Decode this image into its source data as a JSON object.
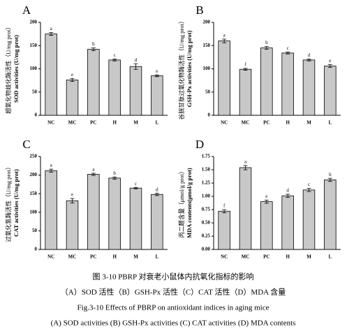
{
  "chart_data": [
    {
      "type": "bar",
      "title": "A",
      "y_label": [
        "超氧化物歧化酶活性（U/mg prot）",
        "SOD activities (U/mg prot)"
      ],
      "categories": [
        "NC",
        "MC",
        "PC",
        "H",
        "M",
        "L"
      ],
      "values": [
        175,
        76,
        142,
        119,
        105,
        85
      ],
      "errors": [
        3,
        3,
        3,
        2,
        6,
        2
      ],
      "letters": [
        "a",
        "e",
        "b",
        "c",
        "d",
        "e"
      ],
      "color": "#c8c8c8",
      "ylim": [
        0,
        200
      ],
      "yticks": [
        0,
        50,
        100,
        150,
        200
      ]
    },
    {
      "type": "bar",
      "title": "B",
      "y_label": [
        "谷胱甘肽过氧化物酶活性（U/mg prot）",
        "GSH-Px activities (U/mg prot)"
      ],
      "categories": [
        "NC",
        "MC",
        "PC",
        "H",
        "M",
        "L"
      ],
      "values": [
        160,
        99,
        145,
        134,
        119,
        106
      ],
      "errors": [
        4,
        2,
        3,
        2,
        2,
        3
      ],
      "letters": [
        "a",
        "f",
        "b",
        "c",
        "d",
        "e"
      ],
      "color": "#c8c8c8",
      "ylim": [
        0,
        200
      ],
      "yticks": [
        0,
        50,
        100,
        150,
        200
      ]
    },
    {
      "type": "bar",
      "title": "C",
      "y_label": [
        "过氧化氢酶活性（U/mg prot）",
        "CAT activities (U/mg prot)"
      ],
      "categories": [
        "NC",
        "MC",
        "PC",
        "H",
        "M",
        "L"
      ],
      "values": [
        212,
        131,
        202,
        192,
        165,
        148
      ],
      "errors": [
        4,
        6,
        3,
        3,
        2,
        3
      ],
      "letters": [
        "a",
        "e",
        "a",
        "b",
        "c",
        "d"
      ],
      "color": "#c8c8c8",
      "ylim": [
        0,
        250
      ],
      "yticks": [
        0,
        50,
        100,
        150,
        200,
        250
      ]
    },
    {
      "type": "bar",
      "title": "D",
      "y_label": [
        "丙二醛含量（μmol/g prot）",
        "MDA contents(μmol/g prot)"
      ],
      "categories": [
        "NC",
        "MC",
        "PC",
        "H",
        "M",
        "L"
      ],
      "values": [
        0.72,
        1.54,
        0.9,
        1.01,
        1.12,
        1.31
      ],
      "errors": [
        0.03,
        0.04,
        0.03,
        0.03,
        0.03,
        0.03
      ],
      "letters": [
        "f",
        "a",
        "e",
        "d",
        "c",
        "b"
      ],
      "color": "#c8c8c8",
      "ylim": [
        0,
        1.75
      ],
      "yticks": [
        {
          "value": 0,
          "label": "0.00"
        },
        {
          "value": 0.25,
          "label": "0.25"
        },
        {
          "value": 0.5,
          "label": "0.50"
        },
        {
          "value": 0.75,
          "label": "0.75"
        },
        {
          "value": 1,
          "label": "1.00"
        },
        {
          "value": 1.25,
          "label": "1.25"
        },
        {
          "value": 1.5,
          "label": "1.50"
        },
        {
          "value": 1.75,
          "label": "1.75"
        }
      ]
    }
  ],
  "caption": [
    "图 3-10 PBRP 对衰老小鼠体内抗氧化指标的影响",
    "（A）SOD 活性（B）GSH-Px 活性（C）CAT 活性（D）MDA 含量",
    "Fig.3-10 Effects of PBRP on antioxidant indices in aging mice",
    "(A) SOD activities (B) GSH-Px activities (C) CAT activities (D) MDA contents"
  ]
}
